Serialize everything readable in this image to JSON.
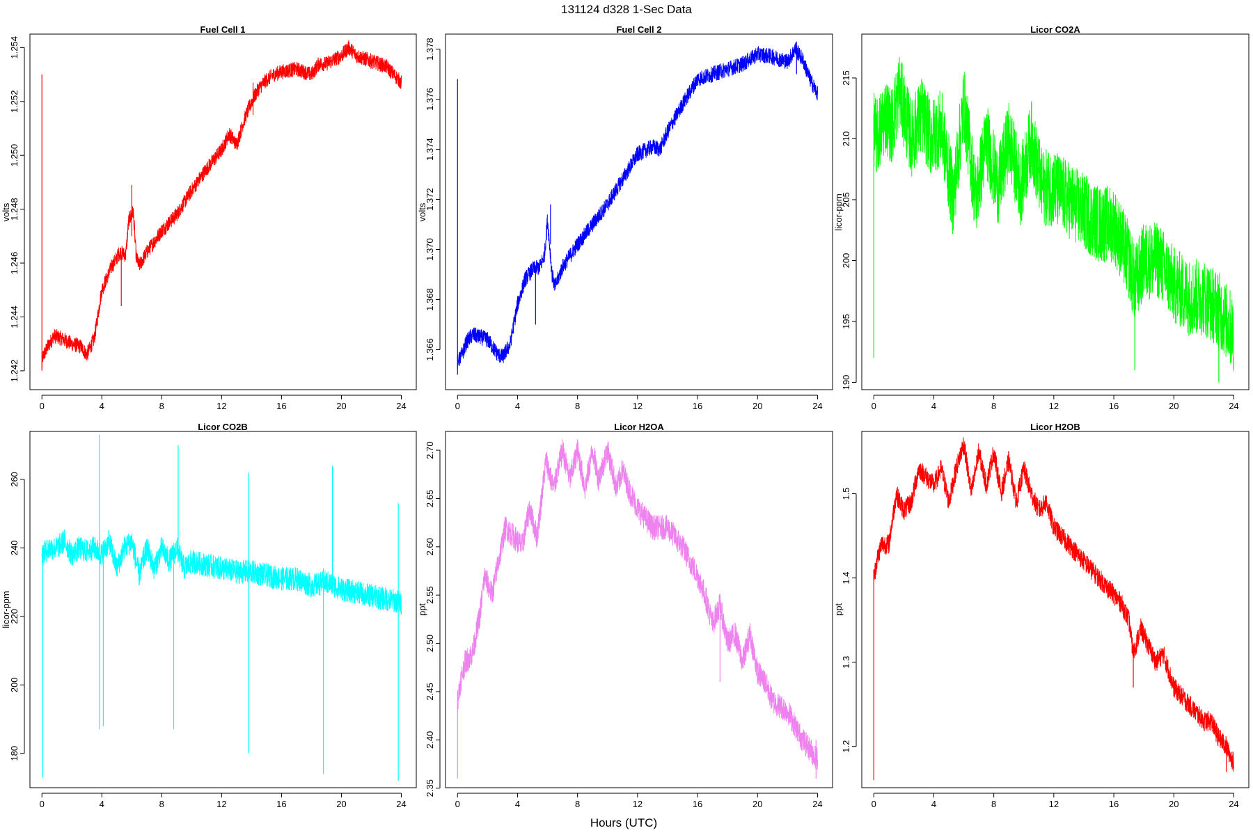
{
  "figure": {
    "title": "131124   d328   1-Sec Data",
    "xlabel": "Hours (UTC)"
  },
  "chart_data": [
    {
      "type": "line",
      "title": "Fuel Cell 1",
      "ylabel": "volts",
      "color": "#ff0000",
      "xlim": [
        -0.8,
        25
      ],
      "ylim": [
        1.2413,
        1.2545
      ],
      "xticks": [
        0,
        4,
        8,
        12,
        16,
        20,
        24
      ],
      "yticks": [
        1.242,
        1.244,
        1.246,
        1.248,
        1.25,
        1.252,
        1.254
      ],
      "ytick_labels": [
        "1.242",
        "1.244",
        "1.246",
        "1.248",
        "1.250",
        "1.252",
        "1.254"
      ],
      "x": [
        0,
        0.05,
        0.3,
        0.8,
        1.3,
        2,
        2.6,
        3,
        3.5,
        4,
        4.6,
        5.2,
        5.6,
        5.8,
        6.1,
        6.3,
        6.5,
        7,
        8,
        9,
        10,
        11,
        12,
        12.5,
        13,
        13.5,
        14,
        14.5,
        15,
        15.5,
        16,
        17,
        18,
        18.5,
        19,
        20,
        20.5,
        21,
        22,
        23,
        23.5,
        24
      ],
      "y": [
        1.2422,
        1.2425,
        1.2428,
        1.2433,
        1.2432,
        1.243,
        1.2429,
        1.2426,
        1.2432,
        1.245,
        1.2458,
        1.2464,
        1.2463,
        1.2476,
        1.2479,
        1.2462,
        1.2459,
        1.2464,
        1.2472,
        1.2478,
        1.2487,
        1.2495,
        1.2502,
        1.2508,
        1.2504,
        1.2513,
        1.252,
        1.2525,
        1.2528,
        1.253,
        1.2531,
        1.2532,
        1.253,
        1.2534,
        1.2534,
        1.2537,
        1.254,
        1.2537,
        1.2535,
        1.2533,
        1.253,
        1.2527
      ],
      "noise": 0.00028,
      "spikes": [
        {
          "x": 0,
          "y0": 1.242,
          "y1": 1.253
        },
        {
          "x": 5.3,
          "y0": 1.2444,
          "y1": 1.2463
        },
        {
          "x": 6.0,
          "y0": 1.247,
          "y1": 1.2489
        },
        {
          "x": 14.1,
          "y0": 1.2515,
          "y1": 1.2527
        }
      ]
    },
    {
      "type": "line",
      "title": "Fuel Cell 2",
      "ylabel": "volts",
      "color": "#0000ff",
      "xlim": [
        -0.8,
        25
      ],
      "ylim": [
        1.3644,
        1.3786
      ],
      "xticks": [
        0,
        4,
        8,
        12,
        16,
        20,
        24
      ],
      "yticks": [
        1.366,
        1.368,
        1.37,
        1.372,
        1.374,
        1.376,
        1.378
      ],
      "ytick_labels": [
        "1.366",
        "1.368",
        "1.370",
        "1.372",
        "1.374",
        "1.376",
        "1.378"
      ],
      "x": [
        0,
        0.3,
        0.6,
        1,
        2,
        2.7,
        3,
        3.5,
        4,
        4.5,
        5,
        5.5,
        5.8,
        6,
        6.3,
        6.5,
        7,
        8,
        9,
        10,
        11,
        12,
        13,
        13.5,
        14,
        15,
        16,
        17,
        18,
        19,
        20,
        21,
        22,
        22.5,
        23,
        23.5,
        24
      ],
      "y": [
        1.3655,
        1.3658,
        1.3663,
        1.3666,
        1.3664,
        1.3658,
        1.3657,
        1.3662,
        1.3678,
        1.3688,
        1.3692,
        1.3693,
        1.3698,
        1.3712,
        1.369,
        1.3685,
        1.3693,
        1.3702,
        1.371,
        1.3718,
        1.3728,
        1.3738,
        1.3741,
        1.374,
        1.3747,
        1.3758,
        1.3768,
        1.377,
        1.3772,
        1.3774,
        1.3778,
        1.3777,
        1.3775,
        1.378,
        1.3776,
        1.3768,
        1.3762
      ],
      "noise": 0.00032,
      "spikes": [
        {
          "x": 0,
          "y0": 1.365,
          "y1": 1.3768
        },
        {
          "x": 5.2,
          "y0": 1.367,
          "y1": 1.369
        },
        {
          "x": 6.2,
          "y0": 1.3702,
          "y1": 1.3718
        },
        {
          "x": 22.6,
          "y0": 1.377,
          "y1": 1.3783
        }
      ]
    },
    {
      "type": "line",
      "title": "Licor CO2A",
      "ylabel": "licor-ppm",
      "color": "#00ff00",
      "xlim": [
        -0.8,
        25
      ],
      "ylim": [
        189.4,
        218.6
      ],
      "xticks": [
        0,
        4,
        8,
        12,
        16,
        20,
        24
      ],
      "yticks": [
        190,
        195,
        200,
        205,
        210,
        215
      ],
      "ytick_labels": [
        "190",
        "195",
        "200",
        "205",
        "210",
        "215"
      ],
      "x": [
        0,
        0.2,
        0.8,
        1.2,
        1.7,
        2.5,
        3.2,
        3.8,
        4.5,
        5.3,
        6.0,
        6.8,
        7.5,
        8.3,
        9.0,
        9.8,
        10.5,
        11.2,
        12,
        13,
        14,
        15,
        16,
        17,
        17.4,
        18,
        19,
        20,
        21,
        22,
        23,
        24
      ],
      "y": [
        211,
        210,
        212,
        211,
        214,
        210,
        212,
        210,
        211,
        205,
        213,
        205,
        210,
        206,
        210,
        206,
        210,
        206,
        206,
        205,
        204,
        203,
        203,
        200,
        198,
        200,
        200,
        198,
        197,
        197,
        196,
        194
      ],
      "noise": 3.2,
      "spikes": [
        {
          "x": 0,
          "y0": 192,
          "y1": 212
        },
        {
          "x": 17.4,
          "y0": 191,
          "y1": 199
        },
        {
          "x": 23.0,
          "y0": 190,
          "y1": 195
        }
      ]
    },
    {
      "type": "line",
      "title": "Licor CO2B",
      "ylabel": "licor-ppm",
      "color": "#00ffff",
      "xlim": [
        -0.8,
        25
      ],
      "ylim": [
        170.0,
        274.0
      ],
      "xticks": [
        0,
        4,
        8,
        12,
        16,
        20,
        24
      ],
      "yticks": [
        180,
        200,
        220,
        240,
        260
      ],
      "ytick_labels": [
        "180",
        "200",
        "220",
        "240",
        "260"
      ],
      "x": [
        0,
        0.5,
        1,
        1.5,
        2,
        2.5,
        3,
        3.5,
        4,
        4.5,
        5,
        5.5,
        6,
        6.5,
        7,
        7.5,
        8,
        8.5,
        9,
        9.5,
        10,
        11,
        12,
        13,
        14,
        15,
        16,
        17,
        18,
        19,
        20,
        21,
        22,
        23,
        24
      ],
      "y": [
        238,
        240,
        240,
        242,
        238,
        240,
        239,
        240,
        238,
        242,
        234,
        240,
        242,
        232,
        240,
        234,
        240,
        236,
        240,
        234,
        236,
        235,
        234,
        233,
        233,
        232,
        231,
        231,
        229,
        230,
        228,
        227,
        226,
        225,
        224
      ],
      "noise": 3.5,
      "spikes": [
        {
          "x": 0.05,
          "y0": 173,
          "y1": 238
        },
        {
          "x": 3.85,
          "y0": 187,
          "y1": 273
        },
        {
          "x": 4.1,
          "y0": 188,
          "y1": 242
        },
        {
          "x": 8.8,
          "y0": 187,
          "y1": 240
        },
        {
          "x": 9.1,
          "y0": 238,
          "y1": 270
        },
        {
          "x": 13.8,
          "y0": 180,
          "y1": 262
        },
        {
          "x": 18.8,
          "y0": 174,
          "y1": 234
        },
        {
          "x": 19.4,
          "y0": 228,
          "y1": 264
        },
        {
          "x": 23.8,
          "y0": 172,
          "y1": 253
        }
      ]
    },
    {
      "type": "line",
      "title": "Licor H2OA",
      "ylabel": "ppt",
      "color": "#ee82ee",
      "xlim": [
        -0.8,
        25
      ],
      "ylim": [
        2.3505,
        2.7195
      ],
      "xticks": [
        0,
        4,
        8,
        12,
        16,
        20,
        24
      ],
      "yticks": [
        2.35,
        2.4,
        2.45,
        2.5,
        2.55,
        2.6,
        2.65,
        2.7
      ],
      "ytick_labels": [
        "2.35",
        "2.40",
        "2.45",
        "2.50",
        "2.55",
        "2.60",
        "2.65",
        "2.70"
      ],
      "x": [
        0,
        0.2,
        0.5,
        1,
        1.5,
        1.8,
        2.3,
        2.8,
        3.2,
        3.8,
        4.3,
        4.8,
        5.3,
        5.9,
        6.4,
        7.0,
        7.5,
        8.0,
        8.5,
        9.0,
        9.4,
        10.0,
        10.6,
        11.0,
        11.4,
        12,
        13,
        14,
        15,
        16,
        16.5,
        17,
        17.5,
        18,
        18.5,
        19,
        19.5,
        20,
        20.5,
        21,
        22,
        23,
        23.5,
        24
      ],
      "y": [
        2.44,
        2.46,
        2.48,
        2.49,
        2.53,
        2.57,
        2.55,
        2.59,
        2.62,
        2.61,
        2.6,
        2.64,
        2.61,
        2.69,
        2.66,
        2.7,
        2.67,
        2.7,
        2.66,
        2.7,
        2.67,
        2.7,
        2.66,
        2.68,
        2.66,
        2.64,
        2.62,
        2.62,
        2.6,
        2.57,
        2.55,
        2.52,
        2.54,
        2.5,
        2.51,
        2.48,
        2.51,
        2.47,
        2.46,
        2.44,
        2.43,
        2.4,
        2.39,
        2.38
      ],
      "noise": 0.013,
      "spikes": [
        {
          "x": 0,
          "y0": 2.36,
          "y1": 2.45
        },
        {
          "x": 17.5,
          "y0": 2.46,
          "y1": 2.53
        },
        {
          "x": 23.9,
          "y0": 2.36,
          "y1": 2.4
        }
      ]
    },
    {
      "type": "line",
      "title": "Licor H2OB",
      "ylabel": "ppt",
      "color": "#ff0000",
      "xlim": [
        -0.8,
        25
      ],
      "ylim": [
        1.151,
        1.574
      ],
      "xticks": [
        0,
        4,
        8,
        12,
        16,
        20,
        24
      ],
      "yticks": [
        1.2,
        1.3,
        1.4,
        1.5
      ],
      "ytick_labels": [
        "1.2",
        "1.3",
        "1.4",
        "1.5"
      ],
      "x": [
        0,
        0.2,
        0.5,
        1,
        1.5,
        2,
        2.5,
        3,
        3.5,
        4,
        4.5,
        5,
        5.5,
        6,
        6.5,
        7,
        7.5,
        8,
        8.5,
        9,
        9.5,
        10,
        10.5,
        11,
        11.5,
        12,
        13,
        14,
        15,
        16,
        16.5,
        17,
        17.3,
        17.8,
        18.3,
        18.8,
        19.3,
        20,
        21,
        22,
        22.5,
        23,
        23.5,
        24
      ],
      "y": [
        1.4,
        1.42,
        1.44,
        1.44,
        1.5,
        1.48,
        1.49,
        1.53,
        1.52,
        1.51,
        1.53,
        1.49,
        1.53,
        1.56,
        1.5,
        1.55,
        1.51,
        1.55,
        1.5,
        1.54,
        1.49,
        1.53,
        1.5,
        1.48,
        1.49,
        1.46,
        1.44,
        1.42,
        1.4,
        1.38,
        1.37,
        1.35,
        1.31,
        1.34,
        1.32,
        1.3,
        1.31,
        1.27,
        1.25,
        1.23,
        1.23,
        1.21,
        1.2,
        1.18
      ],
      "noise": 0.012,
      "spikes": [
        {
          "x": 0,
          "y0": 1.16,
          "y1": 1.41
        },
        {
          "x": 17.3,
          "y0": 1.27,
          "y1": 1.32
        },
        {
          "x": 23.5,
          "y0": 1.17,
          "y1": 1.2
        }
      ]
    }
  ]
}
